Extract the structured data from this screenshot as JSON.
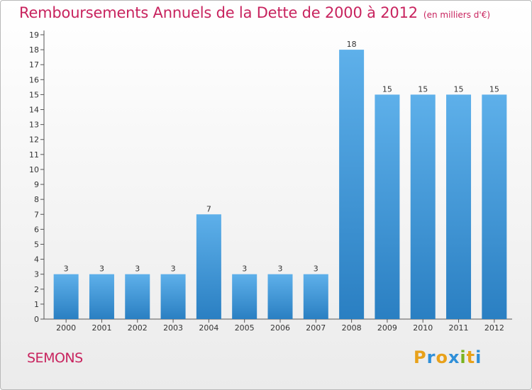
{
  "header": {
    "title": "Remboursements Annuels de la Dette de 2000 à 2012",
    "unit": "(en milliers d'€)"
  },
  "footer": {
    "commune": "SEMONS",
    "logo_letters": [
      "P",
      "r",
      "o",
      "x",
      "i",
      "t",
      "i"
    ],
    "logo_colors": [
      "#e8a11a",
      "#2f8fd8",
      "#e8a11a",
      "#2f8fd8",
      "#7ab31f",
      "#e8a11a",
      "#2f8fd8"
    ]
  },
  "chart_data": {
    "type": "bar",
    "title": "Remboursements Annuels de la Dette de 2000 à 2012",
    "categories": [
      "2000",
      "2001",
      "2002",
      "2003",
      "2004",
      "2005",
      "2006",
      "2007",
      "2008",
      "2009",
      "2010",
      "2011",
      "2012"
    ],
    "values": [
      3,
      3,
      3,
      3,
      7,
      3,
      3,
      3,
      18,
      15,
      15,
      15,
      15
    ],
    "ylim": [
      0,
      19
    ],
    "yticks": [
      "0",
      "1",
      "2",
      "3",
      "4",
      "5",
      "6",
      "7",
      "8",
      "9",
      "10",
      "11",
      "12",
      "13",
      "14",
      "15",
      "16",
      "17",
      "18",
      "19"
    ],
    "grid": false,
    "bar_color_top": "#5eb0ea",
    "bar_color_bottom": "#2a7fc2"
  }
}
